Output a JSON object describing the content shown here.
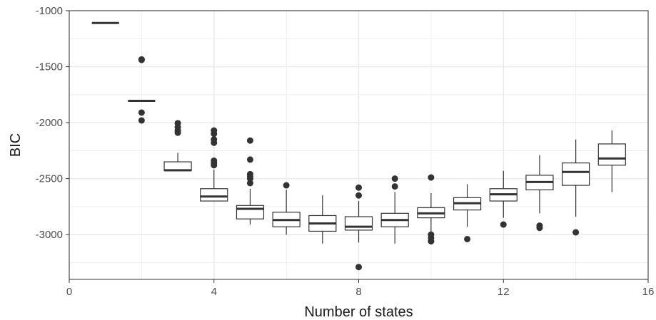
{
  "chart_data": {
    "type": "boxplot",
    "xlabel": "Number of states",
    "ylabel": "BIC",
    "xlim": [
      0,
      16
    ],
    "ylim": [
      -3400,
      -1000
    ],
    "x_ticks": [
      0,
      4,
      8,
      12,
      16
    ],
    "y_ticks": [
      -1000,
      -1500,
      -2000,
      -2500,
      -3000
    ],
    "grid": true,
    "boxes": [
      {
        "x": 1,
        "lower_whisker": -1110,
        "q1": -1110,
        "median": -1110,
        "q3": -1110,
        "upper_whisker": -1110,
        "outliers": []
      },
      {
        "x": 2,
        "lower_whisker": -1805,
        "q1": -1805,
        "median": -1805,
        "q3": -1805,
        "upper_whisker": -1805,
        "outliers": [
          -1440,
          -1435,
          -1910,
          -1980
        ]
      },
      {
        "x": 3,
        "lower_whisker": -2430,
        "q1": -2430,
        "median": -2425,
        "q3": -2350,
        "upper_whisker": -2270,
        "outliers": [
          -2005,
          -2040,
          -2070,
          -2090
        ]
      },
      {
        "x": 4,
        "lower_whisker": -2700,
        "q1": -2700,
        "median": -2660,
        "q3": -2590,
        "upper_whisker": -2420,
        "outliers": [
          -2070,
          -2100,
          -2150,
          -2180,
          -2340,
          -2360,
          -2380
        ]
      },
      {
        "x": 5,
        "lower_whisker": -2910,
        "q1": -2860,
        "median": -2770,
        "q3": -2740,
        "upper_whisker": -2590,
        "outliers": [
          -2160,
          -2330,
          -2460,
          -2480,
          -2500,
          -2540
        ]
      },
      {
        "x": 6,
        "lower_whisker": -3000,
        "q1": -2930,
        "median": -2870,
        "q3": -2800,
        "upper_whisker": -2600,
        "outliers": [
          -2560
        ]
      },
      {
        "x": 7,
        "lower_whisker": -3080,
        "q1": -2970,
        "median": -2900,
        "q3": -2830,
        "upper_whisker": -2650,
        "outliers": []
      },
      {
        "x": 8,
        "lower_whisker": -3070,
        "q1": -2960,
        "median": -2930,
        "q3": -2840,
        "upper_whisker": -2700,
        "outliers": [
          -2580,
          -2650,
          -3290
        ]
      },
      {
        "x": 9,
        "lower_whisker": -3080,
        "q1": -2930,
        "median": -2870,
        "q3": -2810,
        "upper_whisker": -2620,
        "outliers": [
          -2500,
          -2570
        ]
      },
      {
        "x": 10,
        "lower_whisker": -2980,
        "q1": -2850,
        "median": -2810,
        "q3": -2760,
        "upper_whisker": -2630,
        "outliers": [
          -2490,
          -3000,
          -3030,
          -3060
        ]
      },
      {
        "x": 11,
        "lower_whisker": -2930,
        "q1": -2780,
        "median": -2720,
        "q3": -2670,
        "upper_whisker": -2550,
        "outliers": [
          -3040
        ]
      },
      {
        "x": 12,
        "lower_whisker": -2850,
        "q1": -2700,
        "median": -2640,
        "q3": -2590,
        "upper_whisker": -2430,
        "outliers": [
          -2910
        ]
      },
      {
        "x": 13,
        "lower_whisker": -2810,
        "q1": -2600,
        "median": -2530,
        "q3": -2470,
        "upper_whisker": -2290,
        "outliers": [
          -2920,
          -2940
        ]
      },
      {
        "x": 14,
        "lower_whisker": -2840,
        "q1": -2560,
        "median": -2440,
        "q3": -2360,
        "upper_whisker": -2150,
        "outliers": [
          -2980
        ]
      },
      {
        "x": 15,
        "lower_whisker": -2620,
        "q1": -2380,
        "median": -2320,
        "q3": -2190,
        "upper_whisker": -2070,
        "outliers": []
      }
    ],
    "colors": {
      "background": "#ffffff",
      "grid": "#ebebeb",
      "box_line": "#333333",
      "outlier": "#333333",
      "panel_border": "#333333"
    }
  }
}
